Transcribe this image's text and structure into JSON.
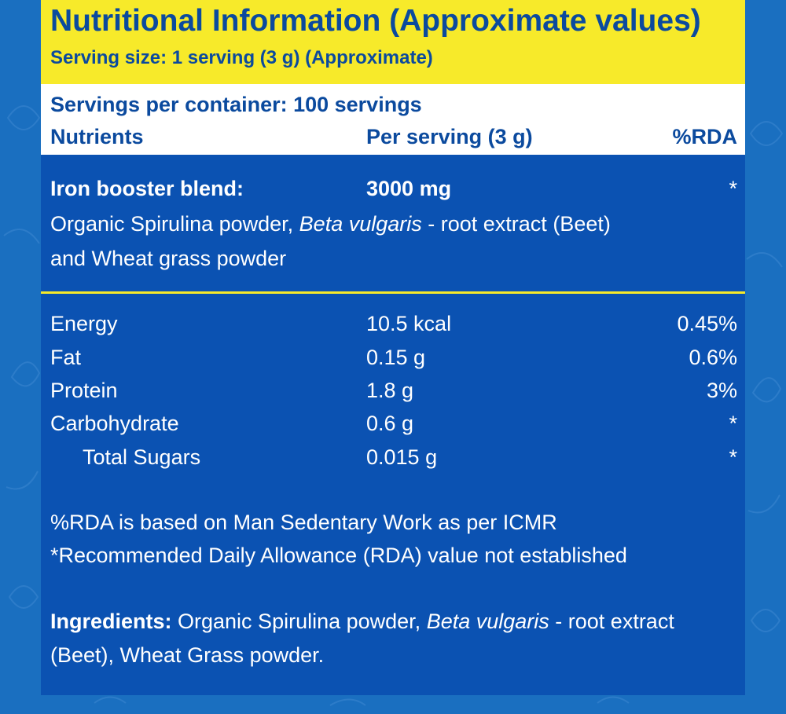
{
  "header": {
    "title": "Nutritional Information (Approximate values)",
    "serving_size": "Serving size: 1 serving (3 g) (Approximate)",
    "servings_per_container": "Servings per container: 100 servings"
  },
  "columns": {
    "nutrients": "Nutrients",
    "per_serving": "Per serving (3 g)",
    "rda": "%RDA"
  },
  "blend": {
    "name": "Iron booster blend:",
    "amount": "3000 mg",
    "rda": "*",
    "desc_part1": "Organic Spirulina powder, ",
    "desc_italic": "Beta vulgaris",
    "desc_part2": " - root extract (Beet)",
    "desc_line2": "and Wheat grass powder"
  },
  "nutrients": [
    {
      "name": "Energy",
      "value": "10.5 kcal",
      "rda": "0.45%"
    },
    {
      "name": "Fat",
      "value": "0.15 g",
      "rda": "0.6%"
    },
    {
      "name": "Protein",
      "value": "1.8 g",
      "rda": "3%"
    },
    {
      "name": "Carbohydrate",
      "value": "0.6 g",
      "rda": "*"
    },
    {
      "name": "Total Sugars",
      "value": "0.015 g",
      "rda": "*"
    }
  ],
  "notes": {
    "line1": "%RDA is based on Man Sedentary Work as per ICMR",
    "line2": "*Recommended Daily Allowance (RDA) value not established"
  },
  "ingredients": {
    "label": "Ingredients:",
    "part1": " Organic Spirulina powder, ",
    "italic": "Beta vulgaris",
    "part2": " - root extract",
    "line2": "(Beet), Wheat Grass powder."
  },
  "colors": {
    "background": "#1a6fc0",
    "panel": "#0b52b2",
    "yellow": "#f7ea2a",
    "navy_text": "#0b4a9e"
  }
}
